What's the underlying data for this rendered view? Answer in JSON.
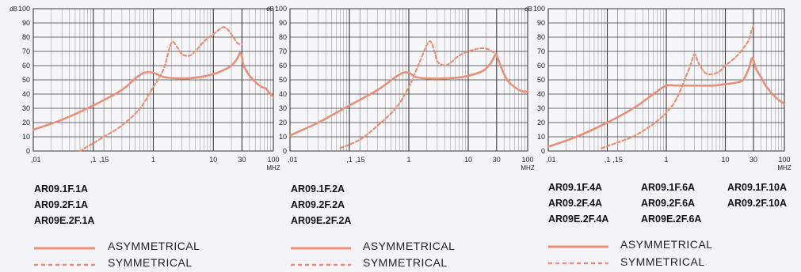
{
  "colors": {
    "curve": "#e8907a",
    "grid": "#3a3a3a",
    "background": "#f4f3f7"
  },
  "y_unit_label": "dB",
  "x_unit_label": "MHZ",
  "y_tick_labels": [
    "0",
    "10",
    "20",
    "30",
    "40",
    "50",
    "60",
    "70",
    "80",
    "90",
    "100"
  ],
  "x_tick_labels": [
    ",01",
    ",1",
    ",15",
    "1",
    "10",
    "30",
    "100"
  ],
  "legend": {
    "asymmetrical": "ASYMMETRICAL",
    "symmetrical": "SYMMETRICAL"
  },
  "chart_data": [
    {
      "type": "line",
      "xscale": "log",
      "xlim": [
        0.01,
        100
      ],
      "ylim": [
        0,
        100
      ],
      "x_ticks": [
        0.01,
        0.1,
        0.15,
        1,
        10,
        30,
        100
      ],
      "y_ticks": [
        0,
        10,
        20,
        30,
        40,
        50,
        60,
        70,
        80,
        90,
        100
      ],
      "grid": true,
      "models": [
        "AR09.1F.1A",
        "AR09.2F.1A",
        "AR09E.2F.1A"
      ],
      "series": [
        {
          "name": "ASYMMETRICAL",
          "style": "solid",
          "x": [
            0.01,
            0.03,
            0.1,
            0.3,
            0.5,
            0.7,
            1,
            1.5,
            3,
            6,
            10,
            15,
            20,
            25,
            28,
            30,
            32,
            40,
            55,
            65,
            75,
            85,
            100
          ],
          "y": [
            15,
            22,
            32,
            43,
            51,
            55,
            55,
            52,
            51,
            52,
            54,
            57,
            60,
            65,
            69,
            66,
            60,
            53,
            47,
            45,
            44,
            41,
            38
          ]
        },
        {
          "name": "SYMMETRICAL",
          "style": "dashed",
          "x": [
            0.06,
            0.15,
            0.3,
            0.6,
            1,
            1.5,
            2.0,
            2.5,
            3,
            4,
            5,
            7,
            10,
            15,
            20,
            25,
            30
          ],
          "y": [
            0,
            10,
            18,
            30,
            45,
            58,
            76,
            73,
            68,
            67,
            70,
            77,
            82,
            87,
            82,
            76,
            75
          ]
        }
      ]
    },
    {
      "type": "line",
      "xscale": "log",
      "xlim": [
        0.01,
        100
      ],
      "ylim": [
        0,
        100
      ],
      "x_ticks": [
        0.01,
        0.1,
        0.15,
        1,
        10,
        30,
        100
      ],
      "y_ticks": [
        0,
        10,
        20,
        30,
        40,
        50,
        60,
        70,
        80,
        90,
        100
      ],
      "grid": true,
      "models": [
        "AR09.1F.2A",
        "AR09.2F.2A",
        "AR09E.2F.2A"
      ],
      "series": [
        {
          "name": "ASYMMETRICAL",
          "style": "solid",
          "x": [
            0.01,
            0.03,
            0.1,
            0.3,
            0.6,
            0.8,
            1,
            1.3,
            2,
            4,
            8,
            15,
            20,
            25,
            28,
            30,
            35,
            45,
            60,
            80,
            100
          ],
          "y": [
            11,
            20,
            32,
            43,
            52,
            55,
            55,
            52,
            51,
            51,
            52,
            55,
            58,
            63,
            67,
            67,
            60,
            50,
            45,
            42,
            42
          ]
        },
        {
          "name": "SYMMETRICAL",
          "style": "dashed",
          "x": [
            0.07,
            0.15,
            0.3,
            0.6,
            1,
            1.5,
            2.2,
            2.7,
            3,
            4,
            5,
            7,
            10,
            15,
            20,
            25,
            30
          ],
          "y": [
            2,
            8,
            18,
            30,
            45,
            62,
            77,
            70,
            63,
            60,
            62,
            67,
            70,
            72,
            72,
            70,
            68
          ]
        }
      ]
    },
    {
      "type": "line",
      "xscale": "log",
      "xlim": [
        0.01,
        100
      ],
      "ylim": [
        0,
        100
      ],
      "x_ticks": [
        0.01,
        0.1,
        0.15,
        1,
        10,
        30,
        100
      ],
      "y_ticks": [
        0,
        10,
        20,
        30,
        40,
        50,
        60,
        70,
        80,
        90,
        100
      ],
      "grid": true,
      "models": [
        [
          "AR09.1F.4A",
          "AR09.2F.4A",
          "AR09E.2F.4A"
        ],
        [
          "AR09.1F.6A",
          "AR09.2F.6A",
          "AR09E.2F.6A"
        ],
        [
          "AR09.1F.10A",
          "AR09.2F.10A"
        ]
      ],
      "series": [
        {
          "name": "ASYMMETRICAL",
          "style": "solid",
          "x": [
            0.01,
            0.03,
            0.1,
            0.3,
            0.7,
            1,
            1.5,
            3,
            6,
            10,
            15,
            20,
            25,
            28,
            30,
            33,
            40,
            50,
            70,
            100
          ],
          "y": [
            3,
            10,
            20,
            31,
            42,
            46,
            46,
            46,
            46,
            47,
            48,
            50,
            58,
            65,
            64,
            58,
            52,
            45,
            38,
            33
          ]
        },
        {
          "name": "SYMMETRICAL",
          "style": "dashed",
          "x": [
            0.08,
            0.15,
            0.3,
            0.6,
            1,
            1.5,
            2.5,
            3,
            3.5,
            4.5,
            6,
            8,
            10,
            15,
            20,
            25,
            28,
            30
          ],
          "y": [
            2,
            6,
            11,
            19,
            27,
            37,
            59,
            68,
            62,
            55,
            54,
            56,
            60,
            66,
            72,
            78,
            85,
            88
          ]
        }
      ]
    }
  ]
}
